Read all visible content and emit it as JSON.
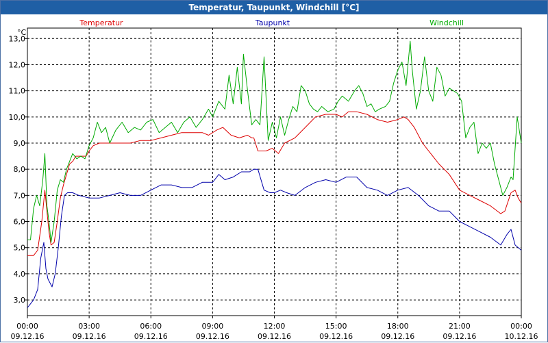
{
  "window": {
    "title": "Temperatur, Taupunkt, Windchill [°C]"
  },
  "chart_data": {
    "type": "line",
    "title": "Temperatur, Taupunkt, Windchill [°C]",
    "ylabel": "°C",
    "ylim": [
      2.4,
      13.4
    ],
    "yticks": [
      "13,0",
      "12,0",
      "11,0",
      "10,0",
      "9,0",
      "8,0",
      "7,0",
      "6,0",
      "5,0",
      "4,0",
      "3,0"
    ],
    "xticks": [
      {
        "time": "00:00",
        "date": "09.12.16"
      },
      {
        "time": "03:00",
        "date": "09.12.16"
      },
      {
        "time": "06:00",
        "date": "09.12.16"
      },
      {
        "time": "09:00",
        "date": "09.12.16"
      },
      {
        "time": "12:00",
        "date": "09.12.16"
      },
      {
        "time": "15:00",
        "date": "09.12.16"
      },
      {
        "time": "18:00",
        "date": "09.12.16"
      },
      {
        "time": "21:00",
        "date": "09.12.16"
      },
      {
        "time": "00:00",
        "date": "10.12.16"
      }
    ],
    "grid": true,
    "x_unit": "hours since 09.12.16 00:00",
    "series": [
      {
        "name": "Temperatur",
        "color": "#dd0000",
        "points": [
          [
            0,
            4.7
          ],
          [
            0.3,
            4.7
          ],
          [
            0.5,
            4.9
          ],
          [
            0.7,
            6.0
          ],
          [
            0.85,
            7.2
          ],
          [
            0.95,
            6.4
          ],
          [
            1.05,
            5.6
          ],
          [
            1.15,
            5.1
          ],
          [
            1.3,
            5.2
          ],
          [
            1.45,
            6.0
          ],
          [
            1.6,
            6.9
          ],
          [
            1.75,
            7.4
          ],
          [
            1.9,
            7.8
          ],
          [
            2.05,
            8.2
          ],
          [
            2.2,
            8.3
          ],
          [
            2.35,
            8.5
          ],
          [
            2.6,
            8.5
          ],
          [
            2.85,
            8.5
          ],
          [
            3.0,
            8.7
          ],
          [
            3.2,
            8.9
          ],
          [
            3.5,
            9.0
          ],
          [
            4.0,
            9.0
          ],
          [
            4.5,
            9.0
          ],
          [
            5.0,
            9.0
          ],
          [
            5.5,
            9.1
          ],
          [
            6.0,
            9.1
          ],
          [
            6.5,
            9.2
          ],
          [
            7.0,
            9.3
          ],
          [
            7.5,
            9.4
          ],
          [
            8.0,
            9.4
          ],
          [
            8.5,
            9.4
          ],
          [
            8.8,
            9.3
          ],
          [
            9.2,
            9.5
          ],
          [
            9.5,
            9.6
          ],
          [
            9.9,
            9.3
          ],
          [
            10.3,
            9.2
          ],
          [
            10.7,
            9.3
          ],
          [
            10.9,
            9.2
          ],
          [
            11.0,
            9.2
          ],
          [
            11.2,
            8.7
          ],
          [
            11.6,
            8.7
          ],
          [
            11.9,
            8.8
          ],
          [
            12.2,
            8.6
          ],
          [
            12.5,
            9.0
          ],
          [
            13.0,
            9.2
          ],
          [
            13.5,
            9.6
          ],
          [
            14.0,
            10.0
          ],
          [
            14.5,
            10.1
          ],
          [
            15.0,
            10.1
          ],
          [
            15.3,
            10.0
          ],
          [
            15.6,
            10.2
          ],
          [
            16.0,
            10.2
          ],
          [
            16.5,
            10.1
          ],
          [
            17.0,
            9.9
          ],
          [
            17.5,
            9.8
          ],
          [
            18.0,
            9.9
          ],
          [
            18.3,
            10.0
          ],
          [
            18.5,
            9.9
          ],
          [
            18.8,
            9.6
          ],
          [
            19.2,
            9.0
          ],
          [
            19.6,
            8.6
          ],
          [
            20.0,
            8.2
          ],
          [
            20.5,
            7.8
          ],
          [
            21.0,
            7.2
          ],
          [
            21.5,
            7.0
          ],
          [
            22.0,
            6.8
          ],
          [
            22.5,
            6.6
          ],
          [
            23.0,
            6.3
          ],
          [
            23.2,
            6.4
          ],
          [
            23.5,
            7.1
          ],
          [
            23.7,
            7.2
          ],
          [
            23.85,
            6.9
          ],
          [
            24.0,
            6.7
          ]
        ]
      },
      {
        "name": "Taupunkt",
        "color": "#0000aa",
        "points": [
          [
            0,
            2.7
          ],
          [
            0.1,
            2.8
          ],
          [
            0.3,
            3.0
          ],
          [
            0.5,
            3.4
          ],
          [
            0.65,
            4.6
          ],
          [
            0.8,
            5.2
          ],
          [
            0.9,
            4.2
          ],
          [
            1.0,
            3.8
          ],
          [
            1.2,
            3.5
          ],
          [
            1.35,
            4.0
          ],
          [
            1.5,
            5.0
          ],
          [
            1.65,
            6.2
          ],
          [
            1.8,
            7.0
          ],
          [
            1.95,
            7.1
          ],
          [
            2.2,
            7.1
          ],
          [
            2.5,
            7.0
          ],
          [
            3.0,
            6.9
          ],
          [
            3.5,
            6.9
          ],
          [
            4.0,
            7.0
          ],
          [
            4.5,
            7.1
          ],
          [
            5.0,
            7.0
          ],
          [
            5.5,
            7.0
          ],
          [
            6.0,
            7.2
          ],
          [
            6.5,
            7.4
          ],
          [
            7.0,
            7.4
          ],
          [
            7.5,
            7.3
          ],
          [
            8.0,
            7.3
          ],
          [
            8.5,
            7.5
          ],
          [
            9.0,
            7.5
          ],
          [
            9.3,
            7.8
          ],
          [
            9.6,
            7.6
          ],
          [
            10.0,
            7.7
          ],
          [
            10.4,
            7.9
          ],
          [
            10.8,
            7.9
          ],
          [
            11.0,
            8.0
          ],
          [
            11.2,
            8.0
          ],
          [
            11.5,
            7.2
          ],
          [
            11.8,
            7.1
          ],
          [
            12.0,
            7.1
          ],
          [
            12.3,
            7.2
          ],
          [
            12.6,
            7.1
          ],
          [
            13.0,
            7.0
          ],
          [
            13.5,
            7.3
          ],
          [
            14.0,
            7.5
          ],
          [
            14.5,
            7.6
          ],
          [
            15.0,
            7.5
          ],
          [
            15.5,
            7.7
          ],
          [
            16.0,
            7.7
          ],
          [
            16.5,
            7.3
          ],
          [
            17.0,
            7.2
          ],
          [
            17.5,
            7.0
          ],
          [
            18.0,
            7.2
          ],
          [
            18.5,
            7.3
          ],
          [
            19.0,
            7.0
          ],
          [
            19.5,
            6.6
          ],
          [
            20.0,
            6.4
          ],
          [
            20.5,
            6.4
          ],
          [
            21.0,
            6.0
          ],
          [
            21.5,
            5.8
          ],
          [
            22.0,
            5.6
          ],
          [
            22.5,
            5.4
          ],
          [
            23.0,
            5.1
          ],
          [
            23.3,
            5.5
          ],
          [
            23.5,
            5.7
          ],
          [
            23.7,
            5.1
          ],
          [
            24.0,
            4.9
          ]
        ]
      },
      {
        "name": "Windchill",
        "color": "#00aa00",
        "points": [
          [
            0,
            5.3
          ],
          [
            0.15,
            5.3
          ],
          [
            0.3,
            6.5
          ],
          [
            0.45,
            7.0
          ],
          [
            0.6,
            6.6
          ],
          [
            0.75,
            7.6
          ],
          [
            0.85,
            8.6
          ],
          [
            0.95,
            6.6
          ],
          [
            1.05,
            6.0
          ],
          [
            1.15,
            5.2
          ],
          [
            1.3,
            6.0
          ],
          [
            1.45,
            7.2
          ],
          [
            1.6,
            7.6
          ],
          [
            1.75,
            7.5
          ],
          [
            1.9,
            8.0
          ],
          [
            2.05,
            8.3
          ],
          [
            2.2,
            8.6
          ],
          [
            2.4,
            8.4
          ],
          [
            2.6,
            8.5
          ],
          [
            2.8,
            8.4
          ],
          [
            3.0,
            8.9
          ],
          [
            3.2,
            9.2
          ],
          [
            3.4,
            9.8
          ],
          [
            3.6,
            9.4
          ],
          [
            3.8,
            9.6
          ],
          [
            4.0,
            9.0
          ],
          [
            4.3,
            9.5
          ],
          [
            4.6,
            9.8
          ],
          [
            4.9,
            9.4
          ],
          [
            5.2,
            9.6
          ],
          [
            5.5,
            9.5
          ],
          [
            5.8,
            9.8
          ],
          [
            6.1,
            9.9
          ],
          [
            6.4,
            9.4
          ],
          [
            6.7,
            9.6
          ],
          [
            7.0,
            9.8
          ],
          [
            7.3,
            9.4
          ],
          [
            7.6,
            9.8
          ],
          [
            7.9,
            10.0
          ],
          [
            8.2,
            9.6
          ],
          [
            8.5,
            9.9
          ],
          [
            8.8,
            10.3
          ],
          [
            9.0,
            10.0
          ],
          [
            9.3,
            10.6
          ],
          [
            9.6,
            10.3
          ],
          [
            9.8,
            11.6
          ],
          [
            10.0,
            10.5
          ],
          [
            10.2,
            11.9
          ],
          [
            10.4,
            10.5
          ],
          [
            10.5,
            12.4
          ],
          [
            10.7,
            11.0
          ],
          [
            10.9,
            9.7
          ],
          [
            11.1,
            9.9
          ],
          [
            11.3,
            9.7
          ],
          [
            11.5,
            12.3
          ],
          [
            11.7,
            9.1
          ],
          [
            11.9,
            9.8
          ],
          [
            12.1,
            9.2
          ],
          [
            12.3,
            10.0
          ],
          [
            12.5,
            9.3
          ],
          [
            12.7,
            9.9
          ],
          [
            12.9,
            10.4
          ],
          [
            13.1,
            10.2
          ],
          [
            13.3,
            11.2
          ],
          [
            13.5,
            11.0
          ],
          [
            13.7,
            10.5
          ],
          [
            13.9,
            10.3
          ],
          [
            14.1,
            10.2
          ],
          [
            14.3,
            10.4
          ],
          [
            14.6,
            10.2
          ],
          [
            14.9,
            10.3
          ],
          [
            15.1,
            10.6
          ],
          [
            15.3,
            10.8
          ],
          [
            15.6,
            10.6
          ],
          [
            15.9,
            11.0
          ],
          [
            16.1,
            11.2
          ],
          [
            16.3,
            10.9
          ],
          [
            16.5,
            10.4
          ],
          [
            16.7,
            10.5
          ],
          [
            16.9,
            10.2
          ],
          [
            17.1,
            10.3
          ],
          [
            17.4,
            10.4
          ],
          [
            17.6,
            10.6
          ],
          [
            17.8,
            11.3
          ],
          [
            18.0,
            11.8
          ],
          [
            18.2,
            12.1
          ],
          [
            18.4,
            11.2
          ],
          [
            18.6,
            12.9
          ],
          [
            18.7,
            11.8
          ],
          [
            18.9,
            10.3
          ],
          [
            19.1,
            11.0
          ],
          [
            19.3,
            12.3
          ],
          [
            19.5,
            11.0
          ],
          [
            19.7,
            10.6
          ],
          [
            19.9,
            11.9
          ],
          [
            20.1,
            11.6
          ],
          [
            20.3,
            10.8
          ],
          [
            20.5,
            11.1
          ],
          [
            20.7,
            11.0
          ],
          [
            20.9,
            10.9
          ],
          [
            21.1,
            10.6
          ],
          [
            21.3,
            9.2
          ],
          [
            21.5,
            9.6
          ],
          [
            21.7,
            9.8
          ],
          [
            21.9,
            8.6
          ],
          [
            22.1,
            9.0
          ],
          [
            22.3,
            8.8
          ],
          [
            22.5,
            9.0
          ],
          [
            22.7,
            8.2
          ],
          [
            22.9,
            7.6
          ],
          [
            23.1,
            7.0
          ],
          [
            23.3,
            7.3
          ],
          [
            23.5,
            7.7
          ],
          [
            23.6,
            7.6
          ],
          [
            23.8,
            10.0
          ],
          [
            24.0,
            9.0
          ]
        ]
      }
    ]
  }
}
